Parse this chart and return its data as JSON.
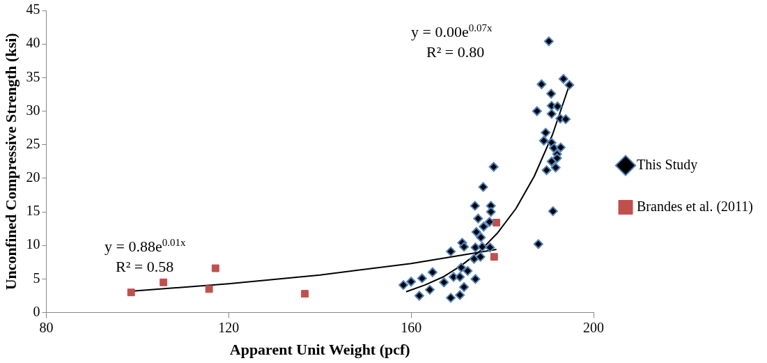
{
  "chart_data": {
    "type": "scatter",
    "xlabel": "Apparent Unit Weight (pcf)",
    "ylabel": "Unconfined Compressive Strength (ksi)",
    "xlim": [
      80,
      200
    ],
    "xticks": [
      80,
      120,
      160,
      200
    ],
    "ylim": [
      0,
      45
    ],
    "yticks": [
      0,
      5,
      10,
      15,
      20,
      25,
      30,
      35,
      40,
      45
    ],
    "grid": false,
    "legend": "right",
    "series": [
      {
        "name": "This Study",
        "color": "#4f81bd",
        "marker": "diamond",
        "x": [
          175.8,
          174.0,
          177.5,
          177.5,
          174.7,
          175.9,
          177.2,
          174.3,
          175.3,
          171.2,
          171.6,
          168.7,
          174.1,
          175.6,
          177.3,
          173.8,
          175.2,
          171.0,
          172.4,
          169.3,
          170.7,
          174.1,
          164.7,
          162.4,
          160.0,
          158.3,
          167.2,
          164.1,
          171.6,
          161.8,
          168.7,
          170.7,
          178.1,
          187.9,
          190.2,
          193.4,
          194.7,
          188.6,
          190.7,
          190.8,
          192.1,
          187.6,
          190.8,
          192.7,
          193.9,
          189.5,
          189.1,
          190.8,
          191.3,
          192.8,
          192.0,
          192.0,
          190.8,
          191.7,
          189.7,
          191.1
        ],
        "values": [
          18.7,
          15.9,
          15.9,
          15.0,
          14.0,
          12.8,
          13.5,
          12.0,
          11.2,
          10.4,
          9.8,
          9.1,
          9.7,
          9.8,
          9.7,
          8.0,
          8.3,
          6.7,
          6.2,
          5.3,
          5.3,
          5.0,
          6.0,
          5.1,
          4.6,
          4.1,
          4.5,
          3.4,
          3.8,
          2.5,
          2.2,
          2.6,
          21.7,
          10.2,
          40.4,
          34.8,
          33.9,
          34.0,
          32.6,
          30.8,
          30.7,
          30.0,
          29.6,
          28.9,
          28.8,
          26.8,
          25.6,
          25.3,
          24.5,
          24.6,
          23.6,
          23.0,
          22.5,
          21.6,
          21.2,
          15.1
        ]
      },
      {
        "name": "Brandes et al. (2011)",
        "color": "#c0504d",
        "marker": "square",
        "x": [
          98.6,
          105.7,
          117.1,
          115.7,
          136.7,
          178.7,
          178.2
        ],
        "values": [
          3.0,
          4.5,
          6.6,
          3.5,
          2.8,
          13.4,
          8.3
        ]
      },
      {
        "type": "line",
        "color": "#000000",
        "marker": "none",
        "x": [
          158.9,
          163,
          167,
          171,
          175,
          179,
          183,
          187,
          191,
          194.7
        ],
        "values": [
          3.1,
          4.1,
          5.3,
          7.0,
          9.1,
          11.9,
          15.5,
          20.3,
          26.5,
          33.9
        ]
      },
      {
        "type": "line",
        "color": "#000000",
        "marker": "none",
        "x": [
          99,
          120,
          140,
          160,
          178.7
        ],
        "values": [
          3.2,
          4.3,
          5.6,
          7.3,
          9.4
        ]
      }
    ],
    "annotations": [
      "y = 0.00e$^{0.07x}$",
      "R² = 0.80",
      "y = 0.88e$^{0.01x}$",
      "R² = 0.58"
    ]
  }
}
